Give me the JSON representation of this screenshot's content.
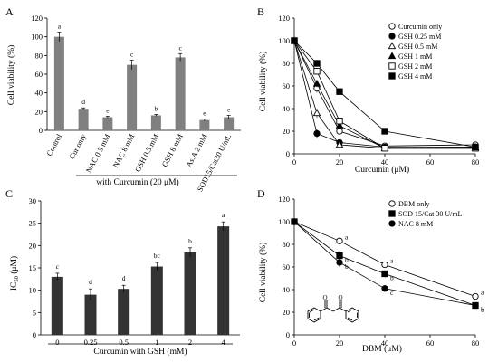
{
  "chart_data": [
    {
      "panel": "A",
      "type": "bar",
      "ylabel": "Cell viability (%)",
      "ylim": [
        0,
        120
      ],
      "yticks": [
        0,
        20,
        40,
        60,
        80,
        100,
        120
      ],
      "categories": [
        "Control",
        "Cur only",
        "NAC 0.5 mM",
        "NAC 8 mM",
        "GSH 0.5 mM",
        "GSH 8 mM",
        "As.A 2 mM",
        "SOD15/Cat30 U/mL"
      ],
      "values": [
        100,
        23,
        14,
        70,
        16,
        78,
        11,
        14
      ],
      "errors": [
        5,
        1,
        1,
        5,
        1,
        4,
        1,
        2
      ],
      "letters": [
        "a",
        "d",
        "e",
        "c",
        "b",
        "c",
        "e",
        "e"
      ],
      "group_label": "with Curcumin (20 μM)",
      "bar_color": "#808080"
    },
    {
      "panel": "B",
      "type": "line",
      "xlabel": "Curcumin (μM)",
      "ylabel": "Cell viability (%)",
      "xlim": [
        0,
        80
      ],
      "ylim": [
        0,
        120
      ],
      "xticks": [
        0,
        20,
        40,
        60,
        80
      ],
      "yticks": [
        0,
        20,
        40,
        60,
        80,
        100,
        120
      ],
      "x": [
        0,
        10,
        20,
        40,
        80
      ],
      "series": [
        {
          "name": "Curcumin only",
          "marker": "circle-open",
          "values": [
            100,
            58,
            20,
            7,
            8
          ],
          "errors": [
            3,
            4,
            2,
            1,
            1
          ]
        },
        {
          "name": "GSH 0.25 mM",
          "marker": "circle-filled",
          "values": [
            100,
            18,
            10,
            6,
            6
          ],
          "errors": [
            3,
            4,
            2,
            1,
            1
          ]
        },
        {
          "name": "GSH 0.5 mM",
          "marker": "triangle-open",
          "values": [
            100,
            36,
            8,
            5,
            6
          ],
          "errors": [
            3,
            4,
            2,
            1,
            1
          ]
        },
        {
          "name": "GSH 1 mM",
          "marker": "triangle-filled",
          "values": [
            100,
            62,
            25,
            5,
            5
          ],
          "errors": [
            3,
            3,
            2,
            1,
            1
          ]
        },
        {
          "name": "GSH 2 mM",
          "marker": "square-open",
          "values": [
            100,
            73,
            29,
            5,
            5
          ],
          "errors": [
            3,
            3,
            2,
            1,
            1
          ]
        },
        {
          "name": "GSH 4 mM",
          "marker": "square-filled",
          "values": [
            100,
            80,
            55,
            20,
            6
          ],
          "errors": [
            3,
            3,
            2,
            1,
            1
          ]
        }
      ]
    },
    {
      "panel": "C",
      "type": "bar",
      "ylabel": "IC50 (μM)",
      "ylim": [
        0,
        30
      ],
      "yticks": [
        0,
        5,
        10,
        15,
        20,
        25,
        30
      ],
      "categories": [
        "0",
        "0.25",
        "0.5",
        "1",
        "2",
        "4"
      ],
      "values": [
        13,
        9,
        10.3,
        15.3,
        18.5,
        24.3
      ],
      "errors": [
        0.8,
        1.3,
        0.8,
        0.9,
        1,
        1
      ],
      "letters": [
        "c",
        "d",
        "d",
        "bc",
        "b",
        "a"
      ],
      "group_label": "Curcumin with GSH (mM)",
      "bar_color": "#333333"
    },
    {
      "panel": "D",
      "type": "line",
      "xlabel": "DBM (μM)",
      "ylabel": "Cell viability (%)",
      "xlim": [
        0,
        80
      ],
      "ylim": [
        0,
        120
      ],
      "xticks": [
        0,
        20,
        40,
        60,
        80
      ],
      "yticks": [
        0,
        20,
        40,
        60,
        80,
        100,
        120
      ],
      "x": [
        0,
        20,
        40,
        80
      ],
      "series": [
        {
          "name": "DBM only",
          "marker": "circle-open",
          "values": [
            100,
            83,
            62,
            34
          ],
          "errors": [
            3,
            3,
            2,
            2
          ],
          "letters": [
            "",
            "a",
            "a",
            "a"
          ]
        },
        {
          "name": "SOD 15/Cat 30 U/mL",
          "marker": "square-filled",
          "values": [
            100,
            70,
            54,
            26
          ],
          "errors": [
            3,
            4,
            3,
            2
          ],
          "letters": [
            "",
            "b",
            "b",
            "b"
          ]
        },
        {
          "name": "NAC 8 mM",
          "marker": "circle-filled",
          "values": [
            100,
            64,
            41,
            26
          ],
          "errors": [
            3,
            4,
            3,
            2
          ],
          "letters": [
            "",
            "b",
            "c",
            "b"
          ]
        }
      ]
    }
  ]
}
